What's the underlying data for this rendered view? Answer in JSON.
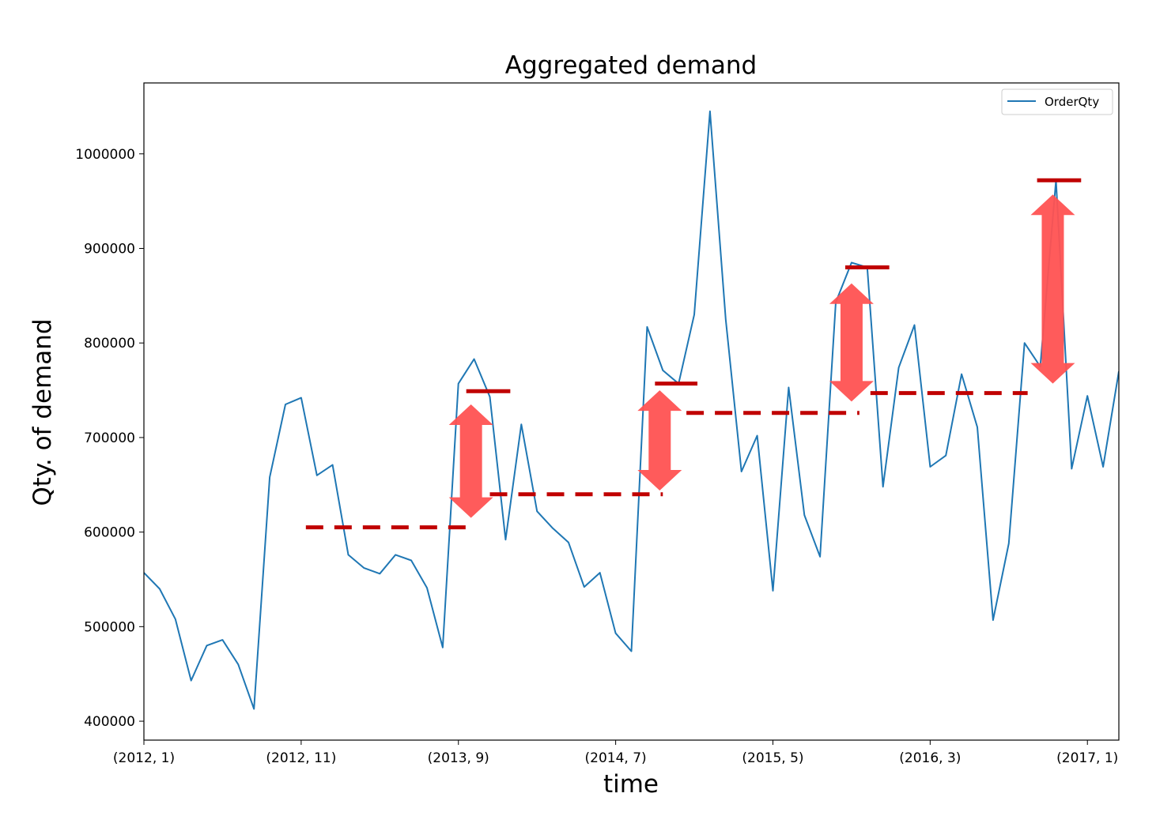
{
  "chart_data": {
    "type": "line",
    "title": "Aggregated demand",
    "xlabel": "time",
    "ylabel": "Qty. of demand",
    "x_tick_labels": [
      "(2012, 1)",
      "(2012, 11)",
      "(2013, 9)",
      "(2014, 7)",
      "(2015, 5)",
      "(2016, 3)",
      "(2017, 1)"
    ],
    "x_ticks": [
      0,
      10,
      20,
      30,
      40,
      50,
      60
    ],
    "y_ticks": [
      400000,
      500000,
      600000,
      700000,
      800000,
      900000,
      1000000
    ],
    "ylim": [
      380000,
      1075000
    ],
    "xlim": [
      0,
      62
    ],
    "grid": false,
    "legend": {
      "placement": "top-right",
      "entries": [
        "OrderQty"
      ]
    },
    "colors": {
      "series": "#1f77b4",
      "annotation": "#c00000",
      "arrow": "#ff5252"
    },
    "series": [
      {
        "name": "OrderQty",
        "values": [
          557000,
          540000,
          508000,
          443000,
          480000,
          486000,
          460000,
          413000,
          658000,
          735000,
          742000,
          660000,
          671000,
          576000,
          562000,
          556000,
          576000,
          570000,
          541000,
          478000,
          757000,
          783000,
          743000,
          592000,
          714000,
          622000,
          604000,
          589000,
          542000,
          557000,
          493000,
          474000,
          817000,
          771000,
          757000,
          830000,
          1045000,
          825000,
          664000,
          702000,
          538000,
          753000,
          618000,
          574000,
          843000,
          885000,
          880000,
          648000,
          774000,
          819000,
          669000,
          681000,
          767000,
          711000,
          507000,
          588000,
          800000,
          775000,
          972000,
          667000,
          744000,
          669000,
          770000
        ]
      }
    ],
    "level_lines": [
      {
        "x_start": 10.3,
        "x_end": 21.0,
        "y": 605000
      },
      {
        "x_start": 22.0,
        "x_end": 33.0,
        "y": 640000
      },
      {
        "x_start": 34.5,
        "x_end": 45.5,
        "y": 726000
      },
      {
        "x_start": 46.2,
        "x_end": 56.2,
        "y": 747000
      }
    ],
    "peak_markers": [
      {
        "x_start": 20.5,
        "x_end": 23.3,
        "y": 749000
      },
      {
        "x_start": 32.5,
        "x_end": 35.2,
        "y": 757000
      },
      {
        "x_start": 44.6,
        "x_end": 47.4,
        "y": 880000
      },
      {
        "x_start": 56.8,
        "x_end": 59.6,
        "y": 972000
      }
    ],
    "arrows": [
      {
        "x": 20.8,
        "y_low": 615000,
        "y_high": 735000
      },
      {
        "x": 32.8,
        "y_low": 644000,
        "y_high": 750000
      },
      {
        "x": 45.0,
        "y_low": 738000,
        "y_high": 863000
      },
      {
        "x": 57.8,
        "y_low": 757000,
        "y_high": 957000
      }
    ]
  }
}
